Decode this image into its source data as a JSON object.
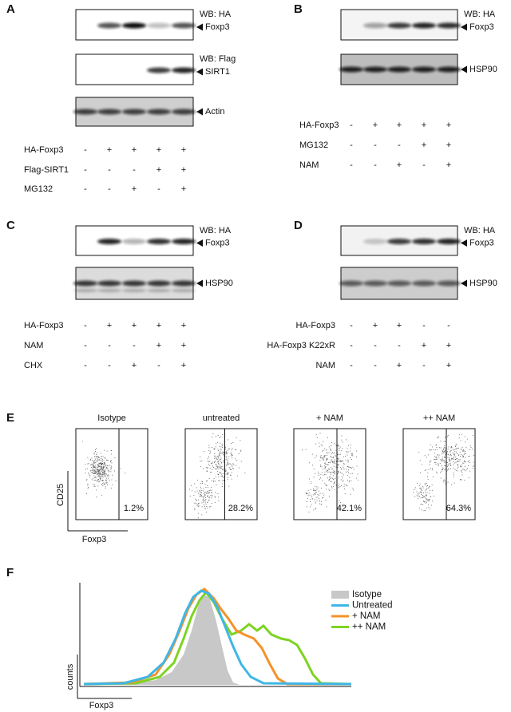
{
  "panels": [
    {
      "letter": "A",
      "blots": [
        {
          "header": "WB: HA",
          "band": "Foxp3"
        },
        {
          "header": "WB: Flag",
          "band": "SIRT1"
        },
        {
          "band": "Actin"
        }
      ],
      "rows": [
        {
          "label": "HA-Foxp3",
          "signs": [
            "-",
            "+",
            "+",
            "+",
            "+"
          ]
        },
        {
          "label": "Flag-SIRT1",
          "signs": [
            "-",
            "-",
            "-",
            "+",
            "+"
          ]
        },
        {
          "label": "MG132",
          "signs": [
            "-",
            "-",
            "+",
            "-",
            "+"
          ]
        }
      ]
    },
    {
      "letter": "B",
      "blots": [
        {
          "header": "WB: HA",
          "band": "Foxp3"
        },
        {
          "band": "HSP90"
        }
      ],
      "rows": [
        {
          "label": "HA-Foxp3",
          "signs": [
            "-",
            "+",
            "+",
            "+",
            "+"
          ]
        },
        {
          "label": "MG132",
          "signs": [
            "-",
            "-",
            "-",
            "+",
            "+"
          ]
        },
        {
          "label": "NAM",
          "signs": [
            "-",
            "-",
            "+",
            "-",
            "+"
          ]
        }
      ]
    },
    {
      "letter": "C",
      "blots": [
        {
          "header": "WB: HA",
          "band": "Foxp3"
        },
        {
          "band": "HSP90"
        }
      ],
      "rows": [
        {
          "label": "HA-Foxp3",
          "signs": [
            "-",
            "+",
            "+",
            "+",
            "+"
          ]
        },
        {
          "label": "NAM",
          "signs": [
            "-",
            "-",
            "-",
            "+",
            "+"
          ]
        },
        {
          "label": "CHX",
          "signs": [
            "-",
            "-",
            "+",
            "-",
            "+"
          ]
        }
      ]
    },
    {
      "letter": "D",
      "blots": [
        {
          "header": "WB: HA",
          "band": "Foxp3"
        },
        {
          "band": "HSP90"
        }
      ],
      "rows": [
        {
          "label": "HA-Foxp3",
          "signs": [
            "-",
            "+",
            "+",
            "-",
            "-"
          ]
        },
        {
          "label": "HA-Foxp3 K22xR",
          "signs": [
            "-",
            "-",
            "-",
            "+",
            "+"
          ]
        },
        {
          "label": "NAM",
          "signs": [
            "-",
            "-",
            "+",
            "-",
            "+"
          ]
        }
      ]
    }
  ],
  "flow": {
    "letter": "E",
    "y_label": "CD25",
    "x_label": "Foxp3",
    "plots": [
      {
        "title": "Isotype",
        "percent": "1.2%"
      },
      {
        "title": "untreated",
        "percent": "28.2%"
      },
      {
        "title": "+ NAM",
        "percent": "42.1%"
      },
      {
        "title": "++ NAM",
        "percent": "64.3%"
      }
    ]
  },
  "histogram": {
    "letter": "F",
    "y_label": "counts",
    "x_label": "Foxp3",
    "legend": [
      "Isotype",
      "Untreated",
      "+ NAM",
      "++ NAM"
    ]
  }
}
